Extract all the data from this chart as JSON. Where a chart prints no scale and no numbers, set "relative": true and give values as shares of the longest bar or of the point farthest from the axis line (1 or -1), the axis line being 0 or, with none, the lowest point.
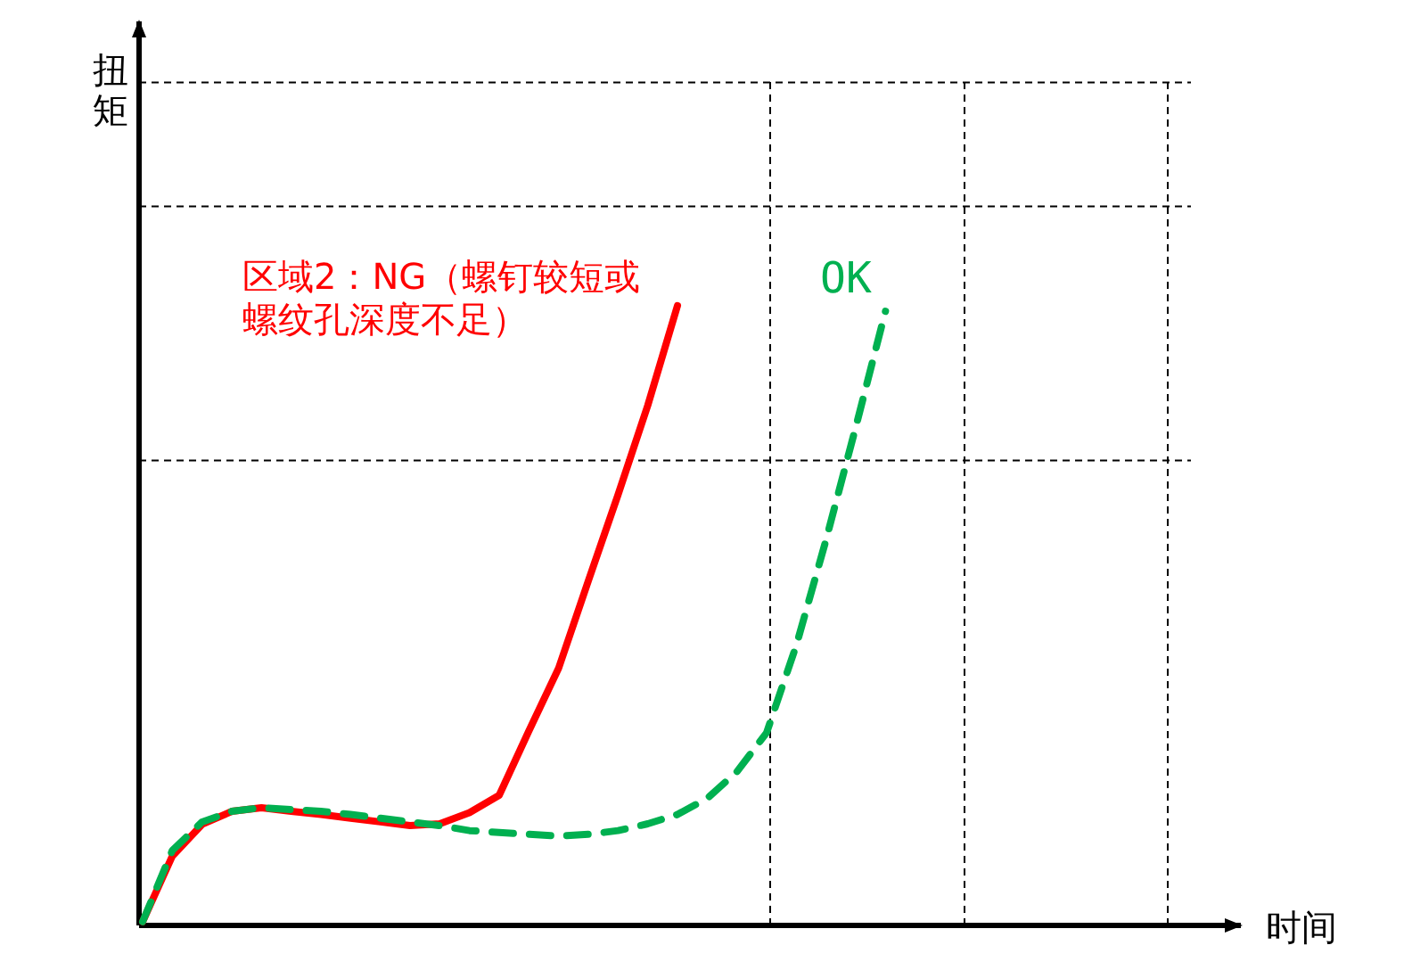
{
  "chart_data": {
    "type": "line",
    "relative": true,
    "xlabel": "时间",
    "ylabel": "扭矩",
    "marker": "none",
    "categories": [
      null,
      null,
      null,
      null,
      null,
      null,
      null,
      null,
      null,
      null,
      null,
      null,
      null,
      null,
      null,
      null,
      null,
      null,
      null,
      null,
      null,
      null,
      null,
      null,
      null,
      null,
      null,
      null,
      null,
      null,
      null,
      null,
      null,
      null,
      null,
      null
    ],
    "series": [
      {
        "name": "区域2：NG（螺钉较短或螺纹孔深度不足）",
        "color": "#ff0000",
        "line_style": "solid",
        "values": [
          0.006,
          0.112,
          0.163,
          0.184,
          0.19,
          0.184,
          0.179,
          0.173,
          0.167,
          0.161,
          0.164,
          0.182,
          0.21,
          0.314,
          0.415,
          0.556,
          0.695,
          0.839,
          1,
          null,
          null,
          null,
          null,
          null,
          null,
          null,
          null,
          null,
          null,
          null,
          null,
          null,
          null,
          null,
          null,
          null
        ]
      },
      {
        "name": "OK",
        "color": "#00b050",
        "line_style": "dashed",
        "values": [
          0.006,
          0.121,
          0.167,
          0.184,
          0.19,
          0.187,
          0.184,
          0.179,
          0.173,
          0.167,
          0.161,
          0.153,
          0.15,
          0.147,
          0.144,
          0.147,
          0.153,
          0.164,
          0.179,
          0.205,
          0.248,
          0.311,
          0.452,
          0.622,
          0.804,
          0.991,
          null,
          null,
          null,
          null,
          null,
          null,
          null,
          null,
          null,
          null
        ]
      }
    ],
    "ref_lines": [
      {
        "axis": "y",
        "value": 1.36,
        "color": "#000000",
        "line_style": "dashed"
      },
      {
        "axis": "y",
        "value": 1.16,
        "color": "#000000",
        "line_style": "dashed"
      },
      {
        "axis": "y",
        "value": 0.75,
        "color": "#000000",
        "line_style": "dashed"
      }
    ]
  }
}
